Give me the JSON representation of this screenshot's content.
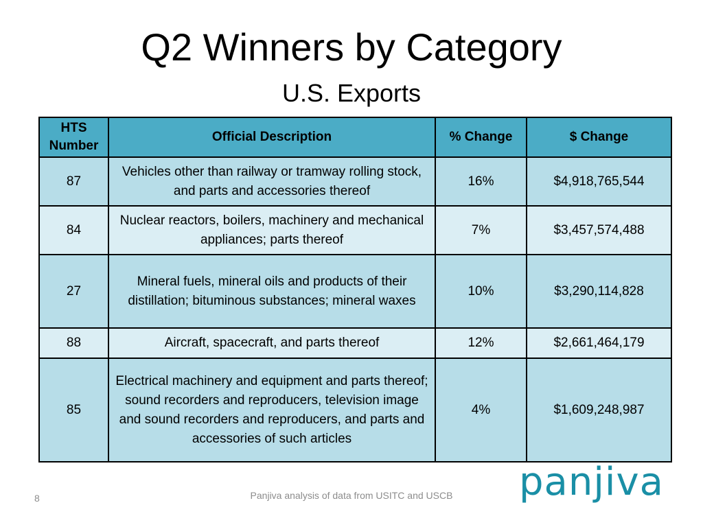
{
  "slide": {
    "title": "Q2 Winners by Category",
    "subtitle": "U.S. Exports",
    "page_number": "8",
    "source_note": "Panjiva analysis of data from USITC and USCB",
    "logo_text": "panjiva"
  },
  "colors": {
    "header_bg": "#4bacc6",
    "row_dark": "#b7dde8",
    "row_light": "#dbeef4",
    "logo": "#1a8fa6"
  },
  "table": {
    "headers": [
      "HTS Number",
      "Official Description",
      "% Change",
      "$ Change"
    ],
    "rows": [
      {
        "hts": "87",
        "description": "Vehicles other than railway or tramway rolling stock, and parts and accessories thereof",
        "pct_change": "16%",
        "dollar_change": "$4,918,765,544"
      },
      {
        "hts": "84",
        "description": "Nuclear reactors, boilers, machinery and mechanical appliances; parts thereof",
        "pct_change": "7%",
        "dollar_change": "$3,457,574,488"
      },
      {
        "hts": "27",
        "description": "Mineral fuels, mineral oils and products of their distillation; bituminous substances; mineral waxes",
        "pct_change": "10%",
        "dollar_change": "$3,290,114,828"
      },
      {
        "hts": "88",
        "description": "Aircraft, spacecraft, and parts thereof",
        "pct_change": "12%",
        "dollar_change": "$2,661,464,179"
      },
      {
        "hts": "85",
        "description": "Electrical machinery and equipment and parts thereof; sound recorders and reproducers, television image and sound recorders and reproducers, and parts and accessories of such articles",
        "pct_change": "4%",
        "dollar_change": "$1,609,248,987"
      }
    ]
  }
}
